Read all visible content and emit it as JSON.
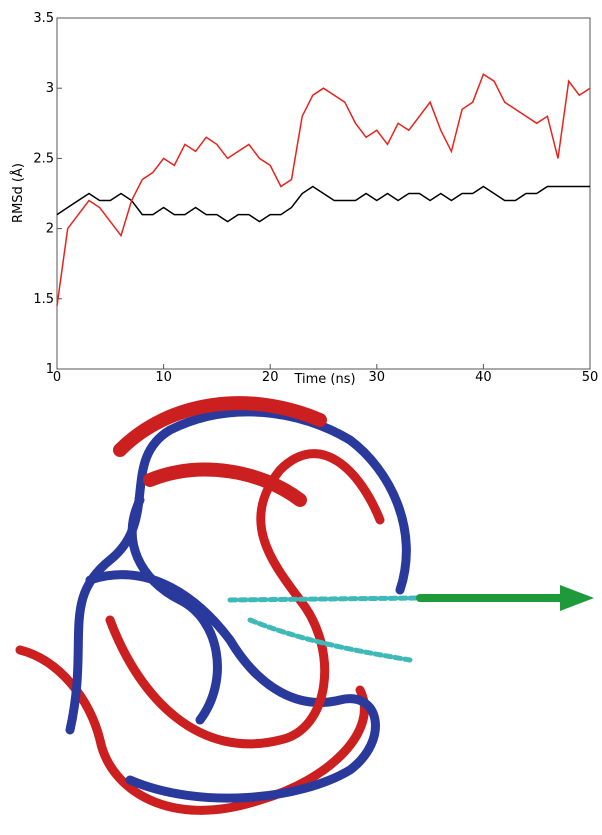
{
  "chart_data": {
    "type": "line",
    "xlabel": "Time (ns)",
    "ylabel": "RMSd (Å)",
    "x": [
      0,
      1,
      2,
      3,
      4,
      5,
      6,
      7,
      8,
      9,
      10,
      11,
      12,
      13,
      14,
      15,
      16,
      17,
      18,
      19,
      20,
      21,
      22,
      23,
      24,
      25,
      26,
      27,
      28,
      29,
      30,
      31,
      32,
      33,
      34,
      35,
      36,
      37,
      38,
      39,
      40,
      41,
      42,
      43,
      44,
      45,
      46,
      47,
      48,
      49,
      50
    ],
    "series": [
      {
        "color": "#000000",
        "values": [
          2.1,
          2.15,
          2.2,
          2.25,
          2.2,
          2.2,
          2.25,
          2.2,
          2.1,
          2.1,
          2.15,
          2.1,
          2.1,
          2.15,
          2.1,
          2.1,
          2.05,
          2.1,
          2.1,
          2.05,
          2.1,
          2.1,
          2.15,
          2.25,
          2.3,
          2.25,
          2.2,
          2.2,
          2.2,
          2.25,
          2.2,
          2.25,
          2.2,
          2.25,
          2.25,
          2.2,
          2.25,
          2.2,
          2.25,
          2.25,
          2.3,
          2.25,
          2.2,
          2.2,
          2.25,
          2.25,
          2.3,
          2.3,
          2.3,
          2.3,
          2.3
        ]
      },
      {
        "color": "#e8231c",
        "values": [
          1.45,
          2.0,
          2.1,
          2.2,
          2.15,
          2.05,
          1.95,
          2.2,
          2.35,
          2.4,
          2.5,
          2.45,
          2.6,
          2.55,
          2.65,
          2.6,
          2.5,
          2.55,
          2.6,
          2.5,
          2.45,
          2.3,
          2.35,
          2.8,
          2.95,
          3.0,
          2.95,
          2.9,
          2.75,
          2.65,
          2.7,
          2.6,
          2.75,
          2.7,
          2.8,
          2.9,
          2.7,
          2.55,
          2.85,
          2.9,
          3.1,
          3.05,
          2.9,
          2.85,
          2.8,
          2.75,
          2.8,
          2.5,
          3.05,
          2.95,
          3.0
        ]
      }
    ],
    "xlim": [
      0,
      50
    ],
    "xticks": [
      0,
      10,
      20,
      30,
      40,
      50
    ],
    "ylim": [
      1,
      3.5
    ],
    "yticks": [
      1,
      1.5,
      2,
      2.5,
      3,
      3.5
    ]
  }
}
